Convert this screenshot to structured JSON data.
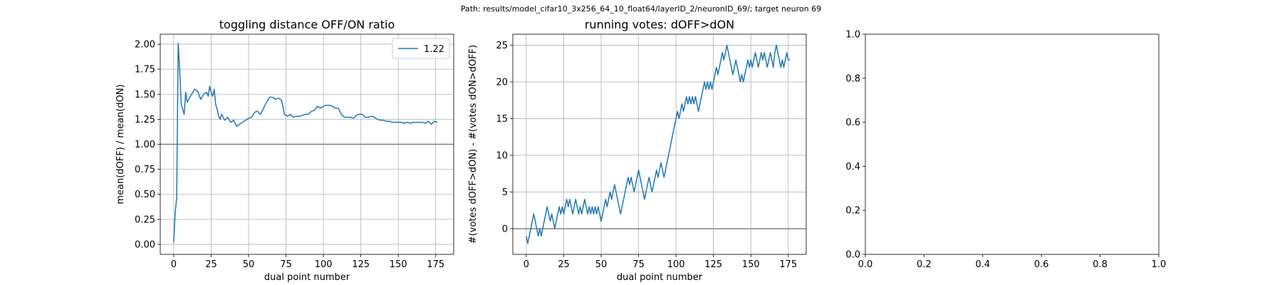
{
  "suptitle": "Path: results/model_cifar10_3x256_64_10_float64/layerID_2/neuronID_69/; target neuron 69",
  "colors": {
    "line": "#1f77b4",
    "refline": "#808080",
    "grid": "#b0b0b0"
  },
  "chart_data": [
    {
      "type": "line",
      "title": "toggling distance OFF/ON ratio",
      "xlabel": "dual point number",
      "ylabel": "mean(dOFF) / mean(dON)",
      "xlim": [
        -9,
        187
      ],
      "ylim": [
        -0.1,
        2.1
      ],
      "xticks": [
        0,
        25,
        50,
        75,
        100,
        125,
        150,
        175
      ],
      "xtick_labels": [
        "0",
        "25",
        "50",
        "75",
        "100",
        "125",
        "150",
        "175"
      ],
      "yticks": [
        0,
        0.25,
        0.5,
        0.75,
        1.0,
        1.25,
        1.5,
        1.75,
        2.0
      ],
      "ytick_labels": [
        "0.00",
        "0.25",
        "0.50",
        "0.75",
        "1.00",
        "1.25",
        "1.50",
        "1.75",
        "2.00"
      ],
      "grid": true,
      "legend_position": "top-right",
      "hline": 1.0,
      "series": [
        {
          "name": "1.22",
          "x": [
            0,
            1,
            2,
            3,
            4,
            5,
            6,
            7,
            8,
            9,
            10,
            12,
            14,
            16,
            18,
            20,
            22,
            23,
            24,
            25,
            26,
            27,
            28,
            29,
            30,
            31,
            32,
            34,
            36,
            38,
            40,
            42,
            44,
            46,
            48,
            50,
            52,
            54,
            56,
            58,
            60,
            62,
            64,
            66,
            68,
            70,
            72,
            74,
            76,
            78,
            80,
            82,
            84,
            86,
            88,
            90,
            92,
            94,
            96,
            98,
            100,
            102,
            104,
            106,
            108,
            110,
            112,
            114,
            116,
            118,
            120,
            122,
            124,
            126,
            128,
            130,
            132,
            134,
            136,
            138,
            140,
            142,
            144,
            146,
            148,
            150,
            152,
            154,
            156,
            158,
            160,
            162,
            164,
            166,
            168,
            170,
            172,
            174,
            176
          ],
          "y": [
            0.02,
            0.32,
            0.47,
            2.01,
            1.75,
            1.4,
            1.35,
            1.3,
            1.52,
            1.42,
            1.45,
            1.5,
            1.55,
            1.53,
            1.45,
            1.5,
            1.52,
            1.48,
            1.58,
            1.52,
            1.48,
            1.55,
            1.4,
            1.35,
            1.28,
            1.25,
            1.3,
            1.24,
            1.27,
            1.22,
            1.24,
            1.18,
            1.2,
            1.22,
            1.24,
            1.26,
            1.27,
            1.32,
            1.33,
            1.3,
            1.36,
            1.42,
            1.47,
            1.47,
            1.45,
            1.46,
            1.44,
            1.3,
            1.28,
            1.3,
            1.27,
            1.28,
            1.28,
            1.29,
            1.3,
            1.3,
            1.33,
            1.34,
            1.38,
            1.36,
            1.38,
            1.39,
            1.39,
            1.38,
            1.36,
            1.36,
            1.3,
            1.27,
            1.27,
            1.27,
            1.26,
            1.29,
            1.3,
            1.3,
            1.27,
            1.27,
            1.28,
            1.27,
            1.25,
            1.24,
            1.24,
            1.23,
            1.23,
            1.22,
            1.22,
            1.22,
            1.22,
            1.21,
            1.22,
            1.21,
            1.22,
            1.22,
            1.22,
            1.22,
            1.21,
            1.23,
            1.2,
            1.23,
            1.22
          ]
        }
      ]
    },
    {
      "type": "line",
      "title": "running votes: dOFF>dON",
      "xlabel": "dual point number",
      "ylabel": "#(votes dOFF>dON) - #(votes dON>dOFF)",
      "xlim": [
        -9,
        187
      ],
      "ylim": [
        -3.5,
        26.5
      ],
      "xticks": [
        0,
        25,
        50,
        75,
        100,
        125,
        150,
        175
      ],
      "xtick_labels": [
        "0",
        "25",
        "50",
        "75",
        "100",
        "125",
        "150",
        "175"
      ],
      "yticks": [
        0,
        5,
        10,
        15,
        20,
        25
      ],
      "ytick_labels": [
        "0",
        "5",
        "10",
        "15",
        "20",
        "25"
      ],
      "grid": true,
      "hline": 0,
      "series": [
        {
          "x": [
            0,
            1,
            2,
            3,
            4,
            5,
            6,
            7,
            8,
            9,
            10,
            11,
            12,
            13,
            14,
            15,
            16,
            17,
            18,
            19,
            20,
            21,
            22,
            23,
            24,
            25,
            26,
            27,
            28,
            29,
            30,
            31,
            32,
            33,
            34,
            35,
            36,
            37,
            38,
            39,
            40,
            41,
            42,
            43,
            44,
            45,
            46,
            47,
            48,
            49,
            50,
            51,
            52,
            53,
            54,
            55,
            56,
            57,
            58,
            59,
            60,
            61,
            62,
            63,
            64,
            65,
            66,
            67,
            68,
            69,
            70,
            71,
            72,
            73,
            74,
            75,
            76,
            77,
            78,
            79,
            80,
            81,
            82,
            83,
            84,
            85,
            86,
            87,
            88,
            89,
            90,
            91,
            92,
            93,
            94,
            95,
            96,
            97,
            98,
            99,
            100,
            101,
            102,
            103,
            104,
            105,
            106,
            107,
            108,
            109,
            110,
            111,
            112,
            113,
            114,
            115,
            116,
            117,
            118,
            119,
            120,
            121,
            122,
            123,
            124,
            125,
            126,
            127,
            128,
            129,
            130,
            131,
            132,
            133,
            134,
            135,
            136,
            137,
            138,
            139,
            140,
            141,
            142,
            143,
            144,
            145,
            146,
            147,
            148,
            149,
            150,
            151,
            152,
            153,
            154,
            155,
            156,
            157,
            158,
            159,
            160,
            161,
            162,
            163,
            164,
            165,
            166,
            167,
            168,
            169,
            170,
            171,
            172,
            173,
            174,
            175,
            176
          ],
          "y": [
            -1,
            -2,
            -1,
            0,
            1,
            2,
            1,
            0,
            -1,
            0,
            -1,
            0,
            1,
            2,
            3,
            2,
            1,
            2,
            1,
            0,
            1,
            2,
            3,
            2,
            3,
            2,
            3,
            4,
            3,
            4,
            3,
            2,
            3,
            4,
            3,
            2,
            3,
            2,
            3,
            4,
            3,
            2,
            3,
            2,
            3,
            2,
            3,
            2,
            3,
            2,
            1,
            2,
            3,
            4,
            3,
            4,
            5,
            4,
            5,
            6,
            5,
            4,
            3,
            2,
            3,
            4,
            5,
            6,
            7,
            6,
            7,
            6,
            5,
            6,
            7,
            8,
            7,
            6,
            5,
            4,
            5,
            6,
            7,
            6,
            5,
            6,
            7,
            8,
            7,
            8,
            9,
            8,
            7,
            8,
            9,
            10,
            11,
            12,
            13,
            14,
            15,
            16,
            15,
            16,
            17,
            16,
            17,
            18,
            17,
            18,
            17,
            18,
            17,
            18,
            17,
            16,
            17,
            18,
            19,
            20,
            19,
            20,
            19,
            20,
            19,
            20,
            21,
            22,
            21,
            22,
            23,
            24,
            23,
            24,
            25,
            24,
            23,
            22,
            21,
            22,
            23,
            22,
            21,
            20,
            21,
            20,
            21,
            22,
            23,
            22,
            23,
            22,
            23,
            24,
            23,
            22,
            23,
            24,
            23,
            24,
            23,
            22,
            23,
            24,
            23,
            22,
            24,
            25,
            24,
            23,
            22,
            23,
            22,
            23,
            24,
            23,
            23
          ]
        }
      ]
    },
    {
      "type": "line",
      "title": "",
      "xlabel": "",
      "ylabel": "",
      "xlim": [
        0,
        1
      ],
      "ylim": [
        0,
        1
      ],
      "xticks": [
        0,
        0.2,
        0.4,
        0.6,
        0.8,
        1.0
      ],
      "xtick_labels": [
        "0.0",
        "0.2",
        "0.4",
        "0.6",
        "0.8",
        "1.0"
      ],
      "yticks": [
        0,
        0.2,
        0.4,
        0.6,
        0.8,
        1.0
      ],
      "ytick_labels": [
        "0.0",
        "0.2",
        "0.4",
        "0.6",
        "0.8",
        "1.0"
      ],
      "grid": false,
      "series": []
    }
  ]
}
